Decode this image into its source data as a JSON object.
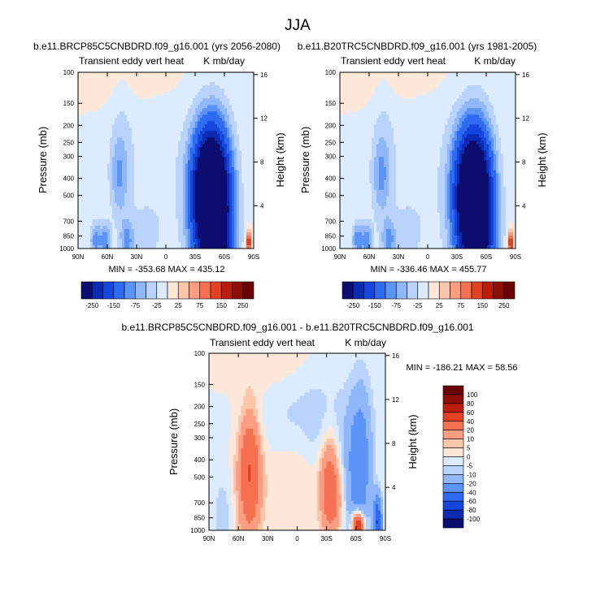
{
  "figure": {
    "title": "JJA"
  },
  "chart_data": [
    {
      "id": "future",
      "type": "heatmap",
      "title": "b.e11.BRCP85C5CNBDRD.f09_g16.001 (yrs 2056-2080)",
      "subtitle_left": "Transient eddy vert heat",
      "subtitle_right": "K mb/day",
      "xlabel": "",
      "ylabel": "Pressure (mb)",
      "ylabel_right": "Height (km)",
      "x_ticks": [
        "90N",
        "60N",
        "30N",
        "0",
        "30S",
        "60S",
        "90S"
      ],
      "x_values": [
        90,
        60,
        30,
        0,
        -30,
        -60,
        -90
      ],
      "xlim": [
        90,
        -90
      ],
      "y_ticks": [
        100,
        150,
        200,
        250,
        300,
        400,
        500,
        700,
        850,
        1000
      ],
      "ylim": [
        1000,
        100
      ],
      "height_ticks": [
        16,
        12,
        8,
        4
      ],
      "stats": "MIN = -353.68  MAX = 435.12",
      "min": -353.68,
      "max": 435.12,
      "features": [
        {
          "lat": -43,
          "p": 480,
          "value": -260,
          "sigma_lat": 11,
          "sigma_logp": 0.22
        },
        {
          "lat": -48,
          "p": 750,
          "value": -230,
          "sigma_lat": 14,
          "sigma_logp": 0.3
        },
        {
          "lat": -46,
          "p": 330,
          "value": -90,
          "sigma_lat": 13,
          "sigma_logp": 0.22
        },
        {
          "lat": -55,
          "p": 700,
          "value": -120,
          "sigma_lat": 9,
          "sigma_logp": 0.3
        },
        {
          "lat": 48,
          "p": 390,
          "value": -55,
          "sigma_lat": 6,
          "sigma_logp": 0.15
        },
        {
          "lat": 45,
          "p": 250,
          "value": -22,
          "sigma_lat": 9,
          "sigma_logp": 0.3
        },
        {
          "lat": 72,
          "p": 900,
          "value": -85,
          "sigma_lat": 4,
          "sigma_logp": 0.07
        },
        {
          "lat": 62,
          "p": 900,
          "value": -85,
          "sigma_lat": 4,
          "sigma_logp": 0.07
        },
        {
          "lat": 40,
          "p": 900,
          "value": -70,
          "sigma_lat": 5,
          "sigma_logp": 0.08
        },
        {
          "lat": 20,
          "p": 880,
          "value": -22,
          "sigma_lat": 15,
          "sigma_logp": 0.15
        },
        {
          "lat": 5,
          "p": 350,
          "value": -18,
          "sigma_lat": 45,
          "sigma_logp": 0.35
        },
        {
          "lat": -85,
          "p": 920,
          "value": 140,
          "sigma_lat": 2,
          "sigma_logp": 0.05
        },
        {
          "lat": 40,
          "p": 110,
          "value": 15,
          "sigma_lat": 45,
          "sigma_logp": 0.12
        }
      ]
    },
    {
      "id": "historical",
      "type": "heatmap",
      "title": "b.e11.B20TRC5CNBDRD.f09_g16.001 (yrs 1981-2005)",
      "subtitle_left": "Transient eddy vert heat",
      "subtitle_right": "K mb/day",
      "xlabel": "",
      "ylabel": "Pressure (mb)",
      "ylabel_right": "Height (km)",
      "x_ticks": [
        "90N",
        "60N",
        "30N",
        "0",
        "30S",
        "60S",
        "90S"
      ],
      "x_values": [
        90,
        60,
        30,
        0,
        -30,
        -60,
        -90
      ],
      "xlim": [
        90,
        -90
      ],
      "y_ticks": [
        100,
        150,
        200,
        250,
        300,
        400,
        500,
        700,
        850,
        1000
      ],
      "ylim": [
        1000,
        100
      ],
      "height_ticks": [
        16,
        12,
        8,
        4
      ],
      "stats": "MIN = -336.46  MAX = 455.77",
      "min": -336.46,
      "max": 455.77,
      "features": [
        {
          "lat": -44,
          "p": 490,
          "value": -250,
          "sigma_lat": 11,
          "sigma_logp": 0.22
        },
        {
          "lat": -48,
          "p": 750,
          "value": -220,
          "sigma_lat": 14,
          "sigma_logp": 0.3
        },
        {
          "lat": -46,
          "p": 330,
          "value": -80,
          "sigma_lat": 13,
          "sigma_logp": 0.22
        },
        {
          "lat": -55,
          "p": 700,
          "value": -110,
          "sigma_lat": 9,
          "sigma_logp": 0.3
        },
        {
          "lat": 48,
          "p": 390,
          "value": -58,
          "sigma_lat": 6,
          "sigma_logp": 0.15
        },
        {
          "lat": 45,
          "p": 250,
          "value": -22,
          "sigma_lat": 9,
          "sigma_logp": 0.3
        },
        {
          "lat": 72,
          "p": 900,
          "value": -90,
          "sigma_lat": 4,
          "sigma_logp": 0.07
        },
        {
          "lat": 62,
          "p": 900,
          "value": -85,
          "sigma_lat": 4,
          "sigma_logp": 0.07
        },
        {
          "lat": 40,
          "p": 900,
          "value": -72,
          "sigma_lat": 5,
          "sigma_logp": 0.08
        },
        {
          "lat": 20,
          "p": 880,
          "value": -22,
          "sigma_lat": 15,
          "sigma_logp": 0.15
        },
        {
          "lat": 5,
          "p": 350,
          "value": -18,
          "sigma_lat": 45,
          "sigma_logp": 0.35
        },
        {
          "lat": -85,
          "p": 920,
          "value": 150,
          "sigma_lat": 2,
          "sigma_logp": 0.05
        },
        {
          "lat": 40,
          "p": 110,
          "value": 15,
          "sigma_lat": 45,
          "sigma_logp": 0.12
        }
      ]
    },
    {
      "id": "difference",
      "type": "heatmap",
      "title": "b.e11.BRCP85C5CNBDRD.f09_g16.001 - b.e11.B20TRC5CNBDRD.f09_g16.001",
      "subtitle_left": "Transient eddy vert heat",
      "subtitle_right": "K mb/day",
      "xlabel": "",
      "ylabel": "Pressure (mb)",
      "ylabel_right": "Height (km)",
      "x_ticks": [
        "90N",
        "60N",
        "30N",
        "0",
        "30S",
        "60S",
        "90S"
      ],
      "x_values": [
        90,
        60,
        30,
        0,
        -30,
        -60,
        -90
      ],
      "xlim": [
        90,
        -90
      ],
      "y_ticks": [
        100,
        150,
        200,
        250,
        300,
        400,
        500,
        700,
        850,
        1000
      ],
      "ylim": [
        1000,
        100
      ],
      "height_ticks": [
        16,
        12,
        8,
        4
      ],
      "stats": "MIN = -186.21  MAX =  58.56",
      "min": -186.21,
      "max": 58.56,
      "features": [
        {
          "lat": 48,
          "p": 430,
          "value": 28,
          "sigma_lat": 7,
          "sigma_logp": 0.2
        },
        {
          "lat": 50,
          "p": 600,
          "value": 15,
          "sigma_lat": 10,
          "sigma_logp": 0.3
        },
        {
          "lat": -33,
          "p": 500,
          "value": 26,
          "sigma_lat": 7,
          "sigma_logp": 0.2
        },
        {
          "lat": -38,
          "p": 700,
          "value": 15,
          "sigma_lat": 8,
          "sigma_logp": 0.15
        },
        {
          "lat": -62,
          "p": 930,
          "value": 70,
          "sigma_lat": 4,
          "sigma_logp": 0.05
        },
        {
          "lat": 0,
          "p": 430,
          "value": 6,
          "sigma_lat": 25,
          "sigma_logp": 0.2
        },
        {
          "lat": -65,
          "p": 400,
          "value": -25,
          "sigma_lat": 8,
          "sigma_logp": 0.3
        },
        {
          "lat": -55,
          "p": 650,
          "value": -12,
          "sigma_lat": 10,
          "sigma_logp": 0.3
        },
        {
          "lat": 0,
          "p": 230,
          "value": -8,
          "sigma_lat": 40,
          "sigma_logp": 0.2
        },
        {
          "lat": 75,
          "p": 850,
          "value": -8,
          "sigma_lat": 8,
          "sigma_logp": 0.2
        },
        {
          "lat": -30,
          "p": 330,
          "value": -6,
          "sigma_lat": 15,
          "sigma_logp": 0.2
        },
        {
          "lat": -82,
          "p": 900,
          "value": -60,
          "sigma_lat": 3,
          "sigma_logp": 0.1
        },
        {
          "lat": 30,
          "p": 120,
          "value": 5,
          "sigma_lat": 30,
          "sigma_logp": 0.15
        }
      ]
    }
  ],
  "colorbars": {
    "top": {
      "orientation": "horizontal",
      "labels": [
        "-250",
        "-150",
        "-75",
        "-25",
        "25",
        "75",
        "150",
        "250"
      ],
      "levels": [
        -250,
        -200,
        -150,
        -100,
        -75,
        -50,
        -25,
        0,
        25,
        50,
        75,
        100,
        150,
        200,
        250
      ],
      "colors": [
        "#0d0d70",
        "#0b2bb2",
        "#1546de",
        "#2e6bf0",
        "#5b94f6",
        "#8fb7fa",
        "#b9d3fc",
        "#dcebfd",
        "#fde7d9",
        "#fcc6ab",
        "#fa9d80",
        "#f47151",
        "#e24223",
        "#bb1d0c",
        "#8e0f08",
        "#6a0404"
      ]
    },
    "diff": {
      "orientation": "vertical",
      "labels": [
        "100",
        "80",
        "60",
        "40",
        "20",
        "10",
        "5",
        "0",
        "-5",
        "-10",
        "-20",
        "-40",
        "-60",
        "-80",
        "-100"
      ],
      "levels": [
        -100,
        -80,
        -60,
        -40,
        -20,
        -10,
        -5,
        0,
        5,
        10,
        20,
        40,
        60,
        80,
        100
      ],
      "colors": [
        "#0d0d70",
        "#0b2bb2",
        "#1546de",
        "#2e6bf0",
        "#5b94f6",
        "#8fb7fa",
        "#b9d3fc",
        "#dcebfd",
        "#fde7d9",
        "#fcc6ab",
        "#fa9d80",
        "#f47151",
        "#e24223",
        "#bb1d0c",
        "#8e0f08",
        "#6a0404"
      ]
    }
  }
}
